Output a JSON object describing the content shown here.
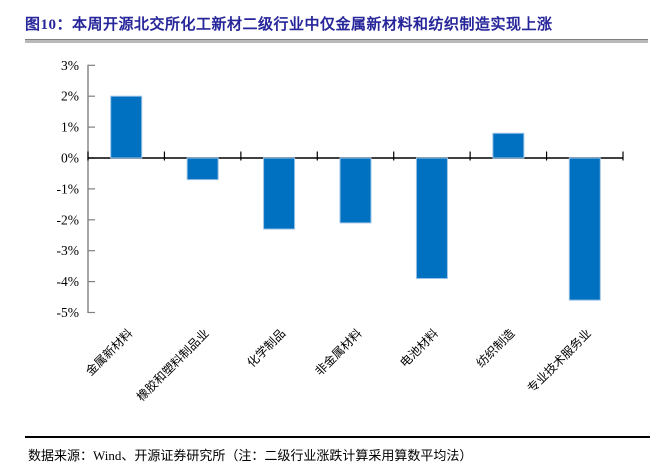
{
  "header": {
    "title": "图10：本周开源北交所化工新材二级行业中仅金属新材料和纺织制造实现上涨",
    "title_color": "#26269A"
  },
  "chart_data": {
    "type": "bar",
    "title": "本周开源北交所化工新材二级行业中仅金属新材料和纺织制造实现上涨",
    "categories": [
      "金属新材料",
      "橡胶和塑料制品业",
      "化学制品",
      "非金属材料",
      "电池材料",
      "纺织制造",
      "专业技术服务业"
    ],
    "values": [
      2.0,
      -0.7,
      -2.3,
      -2.1,
      -3.9,
      0.8,
      -4.6
    ],
    "unit": "%",
    "xlabel": "",
    "ylabel": "",
    "ylim": [
      -5,
      3
    ],
    "ytick_step": 1,
    "ytick_labels": [
      "3%",
      "2%",
      "1%",
      "0%",
      "-1%",
      "-2%",
      "-3%",
      "-4%",
      "-5%"
    ],
    "grid": false,
    "legend": "none",
    "bar_color": "#0070C0",
    "bar_edge_color": "#9DC3E6",
    "axis_color": "#808080",
    "zero_line_color": "#000000",
    "tick_label_rotation_deg": 45
  },
  "footer": {
    "source": "数据来源：Wind、开源证券研究所（注：二级行业涨跌计算采用算数平均法）"
  }
}
